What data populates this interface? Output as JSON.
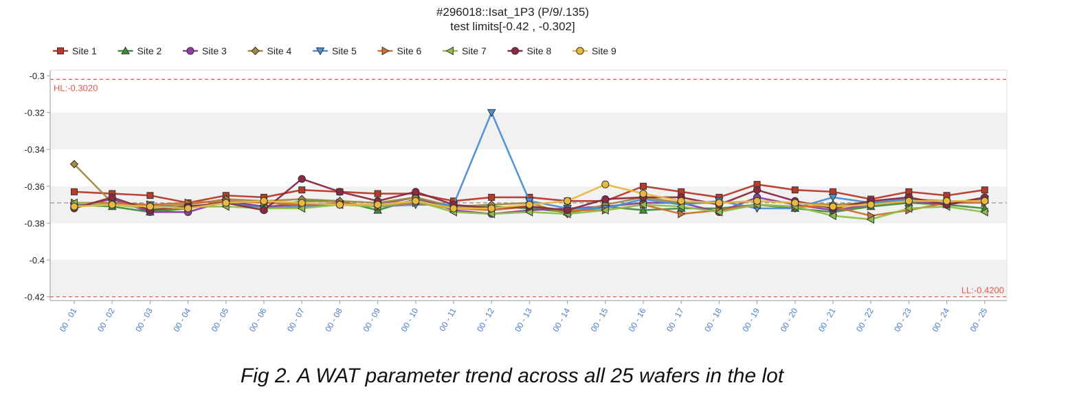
{
  "chart_data": {
    "type": "line",
    "title": "#296018::Isat_1P3 (P/9/.135)",
    "subtitle": "test limits[-0.42 , -0.302]",
    "categories": [
      "00 - 01",
      "00 - 02",
      "00 - 03",
      "00 - 04",
      "00 - 05",
      "00 - 06",
      "00 - 07",
      "00 - 08",
      "00 - 09",
      "00 - 10",
      "00 - 11",
      "00 - 12",
      "00 - 13",
      "00 - 14",
      "00 - 15",
      "00 - 16",
      "00 - 17",
      "00 - 18",
      "00 - 19",
      "00 - 20",
      "00 - 21",
      "00 - 22",
      "00 - 23",
      "00 - 24",
      "00 - 25"
    ],
    "ylim": [
      -0.422,
      -0.297
    ],
    "yticks": [
      -0.3,
      -0.32,
      -0.34,
      -0.36,
      -0.38,
      -0.4,
      -0.42
    ],
    "ytick_labels": [
      "-0.3",
      "-0.32",
      "-0.34",
      "-0.36",
      "-0.38",
      "-0.4",
      "-0.42"
    ],
    "high_limit": {
      "value": -0.302,
      "label": "HL:-0.3020"
    },
    "low_limit": {
      "value": -0.42,
      "label": "LL:-0.4200"
    },
    "mean_line": -0.369,
    "legend_position": "top",
    "series": [
      {
        "name": "Site 1",
        "color": "#b83a2a",
        "marker": "square",
        "values": [
          -0.363,
          -0.364,
          -0.365,
          -0.369,
          -0.365,
          -0.366,
          -0.362,
          -0.363,
          -0.364,
          -0.364,
          -0.368,
          -0.366,
          -0.366,
          -0.368,
          -0.368,
          -0.36,
          -0.363,
          -0.366,
          -0.359,
          -0.362,
          -0.363,
          -0.367,
          -0.363,
          -0.365,
          -0.362
        ]
      },
      {
        "name": "Site 2",
        "color": "#3f8f3a",
        "marker": "triangle-up",
        "values": [
          -0.37,
          -0.371,
          -0.374,
          -0.372,
          -0.368,
          -0.372,
          -0.368,
          -0.368,
          -0.373,
          -0.367,
          -0.371,
          -0.371,
          -0.372,
          -0.374,
          -0.371,
          -0.373,
          -0.372,
          -0.372,
          -0.37,
          -0.372,
          -0.374,
          -0.371,
          -0.369,
          -0.37,
          -0.372
        ]
      },
      {
        "name": "Site 3",
        "color": "#8c3fa0",
        "marker": "circle",
        "values": [
          -0.371,
          -0.367,
          -0.374,
          -0.374,
          -0.368,
          -0.371,
          -0.37,
          -0.37,
          -0.37,
          -0.366,
          -0.373,
          -0.375,
          -0.373,
          -0.372,
          -0.371,
          -0.369,
          -0.369,
          -0.374,
          -0.366,
          -0.37,
          -0.373,
          -0.37,
          -0.368,
          -0.37,
          -0.367
        ]
      },
      {
        "name": "Site 4",
        "color": "#a08a40",
        "marker": "diamond",
        "values": [
          -0.348,
          -0.369,
          -0.371,
          -0.37,
          -0.367,
          -0.368,
          -0.367,
          -0.368,
          -0.369,
          -0.366,
          -0.371,
          -0.37,
          -0.369,
          -0.375,
          -0.37,
          -0.366,
          -0.369,
          -0.369,
          -0.368,
          -0.369,
          -0.37,
          -0.369,
          -0.367,
          -0.368,
          -0.368
        ]
      },
      {
        "name": "Site 5",
        "color": "#4b8fd0",
        "marker": "triangle-down",
        "values": [
          -0.371,
          -0.369,
          -0.37,
          -0.372,
          -0.369,
          -0.372,
          -0.371,
          -0.37,
          -0.371,
          -0.37,
          -0.37,
          -0.32,
          -0.368,
          -0.372,
          -0.372,
          -0.367,
          -0.37,
          -0.368,
          -0.372,
          -0.372,
          -0.366,
          -0.369,
          -0.367,
          -0.369,
          -0.367
        ]
      },
      {
        "name": "Site 6",
        "color": "#d07030",
        "marker": "triangle-right",
        "values": [
          -0.369,
          -0.369,
          -0.37,
          -0.369,
          -0.368,
          -0.369,
          -0.37,
          -0.369,
          -0.371,
          -0.369,
          -0.372,
          -0.373,
          -0.371,
          -0.373,
          -0.373,
          -0.37,
          -0.375,
          -0.373,
          -0.37,
          -0.371,
          -0.371,
          -0.376,
          -0.373,
          -0.369,
          -0.369
        ]
      },
      {
        "name": "Site 7",
        "color": "#8fbf4a",
        "marker": "triangle-left",
        "values": [
          -0.369,
          -0.37,
          -0.372,
          -0.371,
          -0.371,
          -0.372,
          -0.372,
          -0.37,
          -0.371,
          -0.368,
          -0.374,
          -0.375,
          -0.374,
          -0.375,
          -0.373,
          -0.37,
          -0.371,
          -0.374,
          -0.37,
          -0.371,
          -0.376,
          -0.378,
          -0.372,
          -0.371,
          -0.374
        ]
      },
      {
        "name": "Site 8",
        "color": "#8a2a40",
        "marker": "circle",
        "values": [
          -0.372,
          -0.366,
          -0.373,
          -0.371,
          -0.369,
          -0.373,
          -0.356,
          -0.363,
          -0.368,
          -0.363,
          -0.37,
          -0.372,
          -0.371,
          -0.373,
          -0.367,
          -0.366,
          -0.366,
          -0.37,
          -0.362,
          -0.368,
          -0.372,
          -0.368,
          -0.366,
          -0.37,
          -0.366
        ]
      },
      {
        "name": "Site 9",
        "color": "#e8b840",
        "marker": "circle",
        "values": [
          -0.371,
          -0.37,
          -0.371,
          -0.372,
          -0.369,
          -0.368,
          -0.369,
          -0.37,
          -0.37,
          -0.368,
          -0.372,
          -0.372,
          -0.37,
          -0.368,
          -0.359,
          -0.364,
          -0.368,
          -0.369,
          -0.368,
          -0.369,
          -0.371,
          -0.37,
          -0.368,
          -0.368,
          -0.368
        ]
      }
    ]
  },
  "caption": "Fig 2. A WAT parameter trend across all 25 wafers in the lot"
}
